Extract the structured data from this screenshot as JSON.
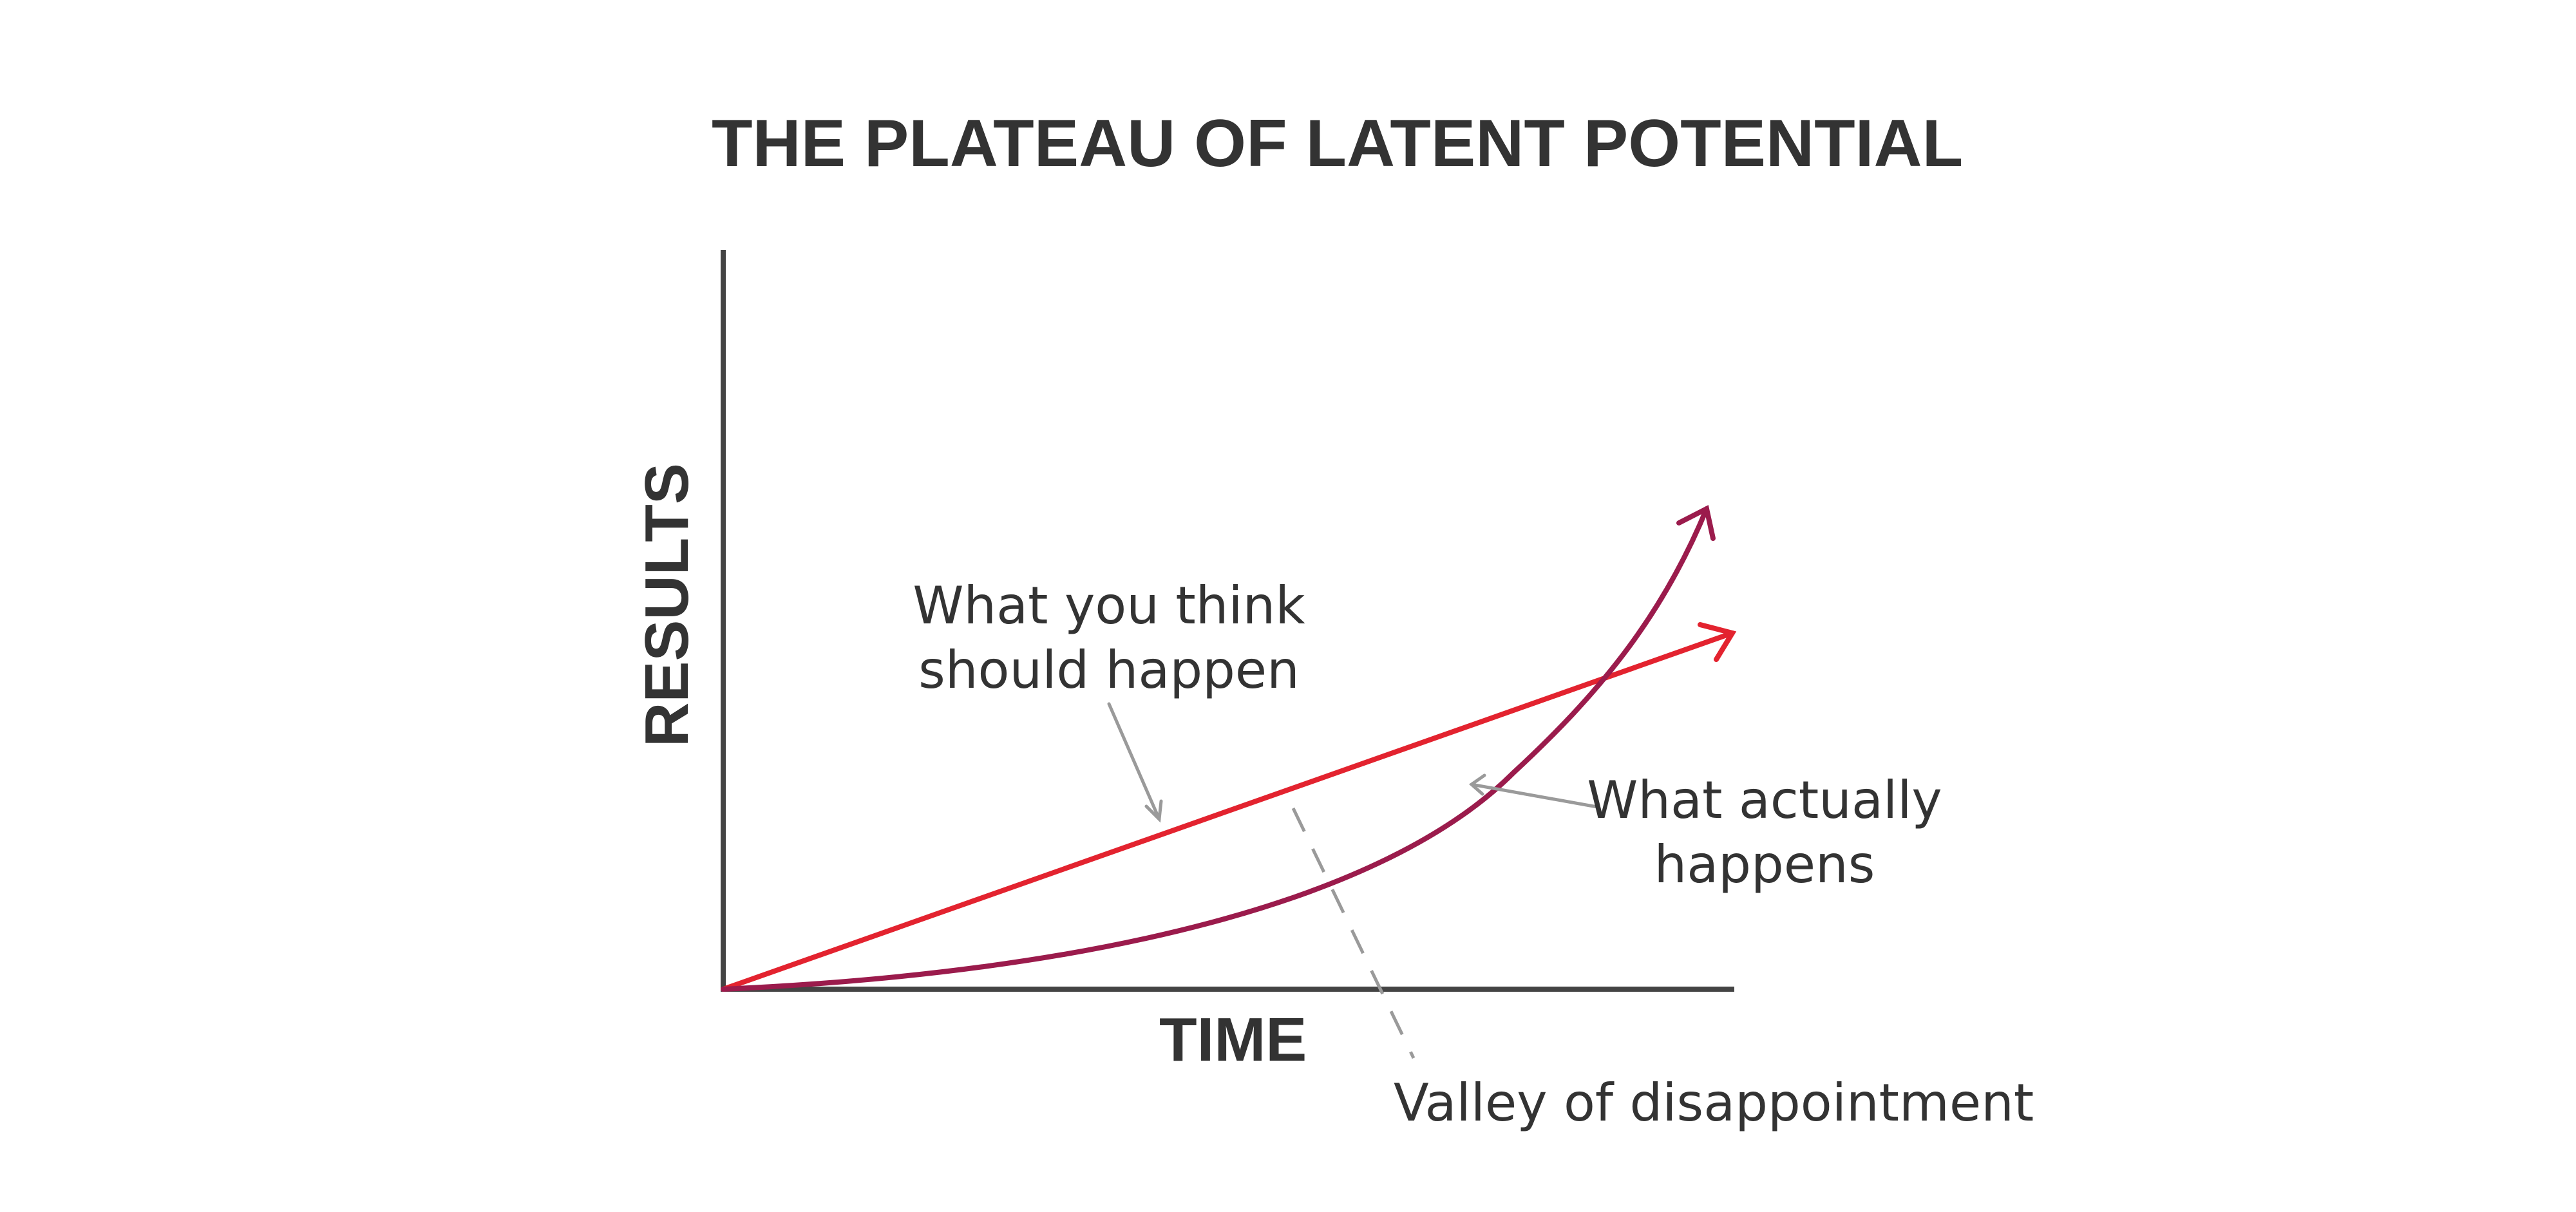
{
  "title": "THE PLATEAU OF LATENT POTENTIAL",
  "axes": {
    "x_label": "TIME",
    "y_label": "RESULTS"
  },
  "annotations": {
    "expected": {
      "line1": "What you think",
      "line2": "should happen"
    },
    "actual": {
      "line1": "What actually",
      "line2": "happens"
    },
    "valley": "Valley of disappointment"
  },
  "colors": {
    "axis": "#444444",
    "expected_line": "#e3232f",
    "actual_curve": "#9b1b4c",
    "pointer": "#9a9a9a",
    "text": "#333333"
  }
}
